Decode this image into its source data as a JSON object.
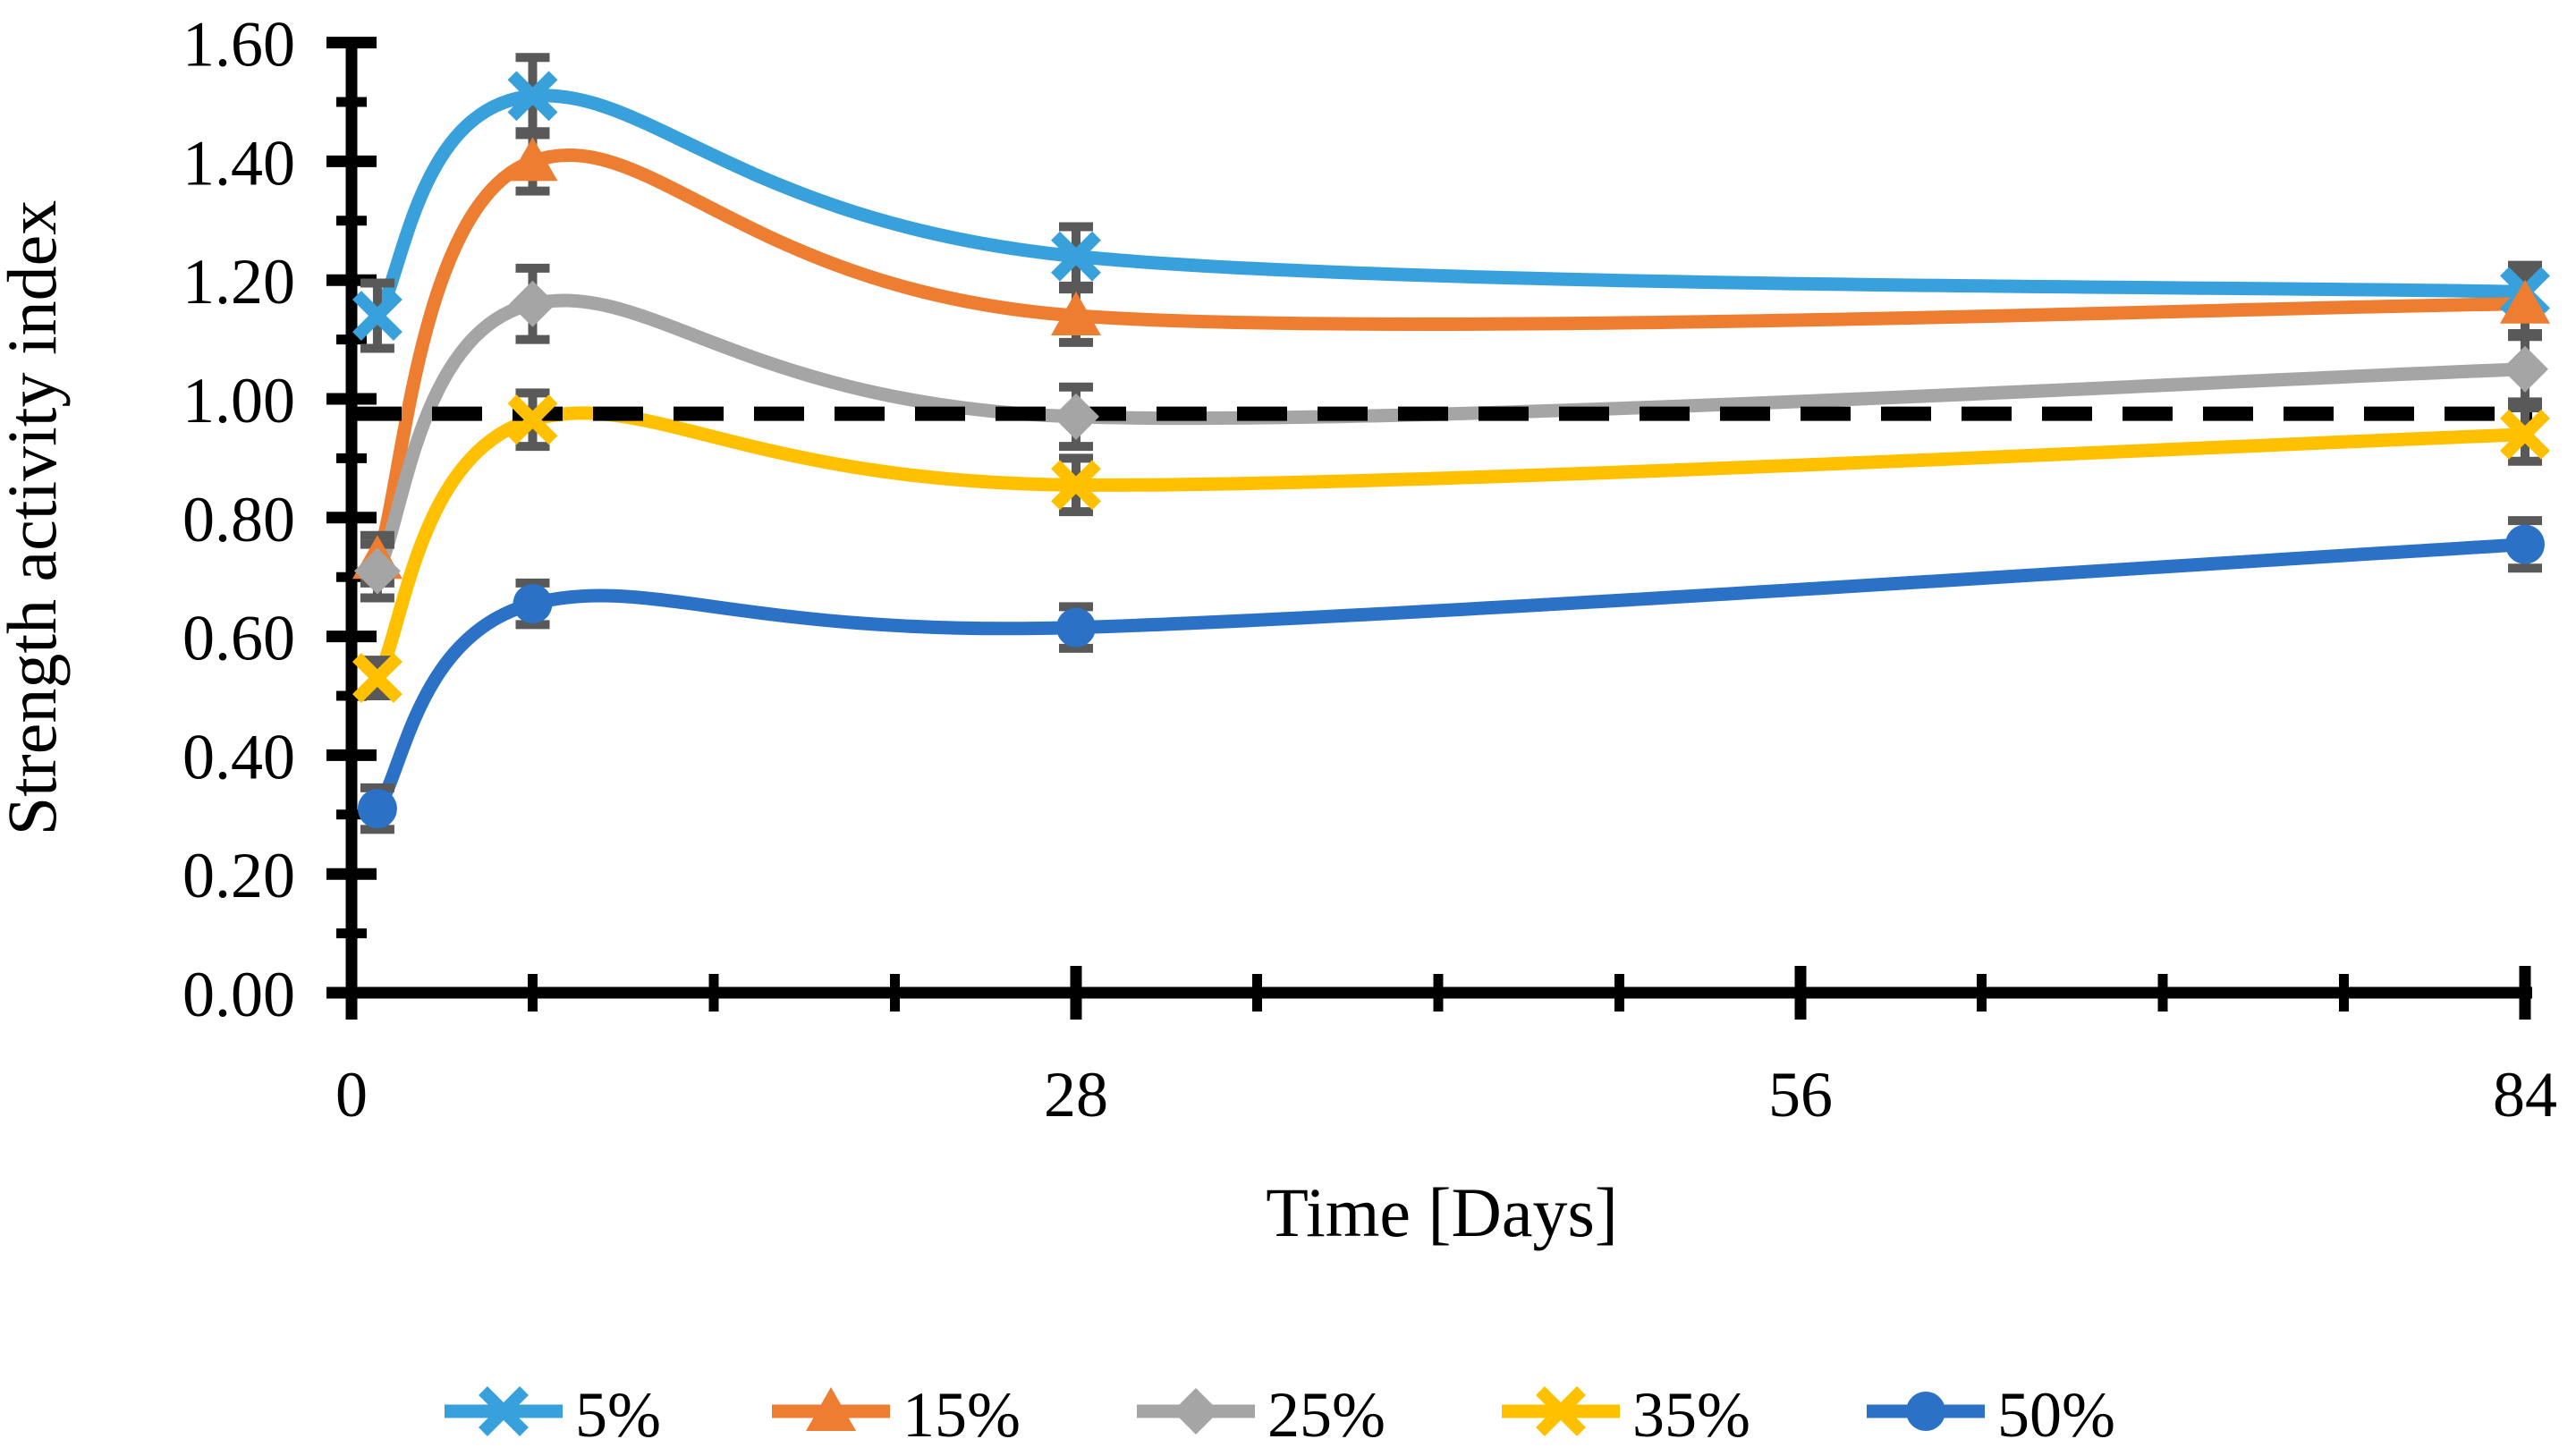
{
  "chart_data": {
    "type": "line",
    "title": "",
    "xlabel": "Time [Days]",
    "ylabel": "Strength activity index",
    "x": [
      1,
      7,
      28,
      84
    ],
    "x_axis": {
      "min": 0,
      "max": 84,
      "major_ticks": [
        0,
        28,
        56,
        84
      ],
      "tick_labels": [
        "0",
        "28",
        "56",
        "84"
      ],
      "minor_tick_step": 7
    },
    "y_axis": {
      "min": 0.0,
      "max": 1.6,
      "major_tick_step": 0.2,
      "minor_tick_step": 0.1,
      "tick_labels": [
        "0.00",
        "0.20",
        "0.40",
        "0.60",
        "0.80",
        "1.00",
        "1.20",
        "1.40",
        "1.60"
      ]
    },
    "grid": false,
    "legend_position": "bottom",
    "reference_line": {
      "value": 0.975,
      "style": "dashed",
      "color": "#000000"
    },
    "error_bar_color": "#595959",
    "series": [
      {
        "name": "5%",
        "color": "#38A1DB",
        "marker": "x",
        "values": [
          1.14,
          1.51,
          1.24,
          1.18
        ],
        "errors": [
          0.055,
          0.065,
          0.05,
          0.045
        ]
      },
      {
        "name": "15%",
        "color": "#ED7D31",
        "marker": "triangle",
        "values": [
          0.73,
          1.4,
          1.14,
          1.16
        ],
        "errors": [
          0.04,
          0.05,
          0.045,
          0.05
        ]
      },
      {
        "name": "25%",
        "color": "#A5A5A5",
        "marker": "diamond",
        "values": [
          0.71,
          1.16,
          0.97,
          1.05
        ],
        "errors": [
          0.045,
          0.06,
          0.05,
          0.055
        ]
      },
      {
        "name": "35%",
        "color": "#FFC000",
        "marker": "x",
        "values": [
          0.53,
          0.965,
          0.855,
          0.94
        ],
        "errors": [
          0.03,
          0.045,
          0.045,
          0.045
        ]
      },
      {
        "name": "50%",
        "color": "#2B72C6",
        "marker": "circle",
        "values": [
          0.31,
          0.655,
          0.615,
          0.755
        ],
        "errors": [
          0.035,
          0.035,
          0.035,
          0.04
        ]
      }
    ]
  }
}
